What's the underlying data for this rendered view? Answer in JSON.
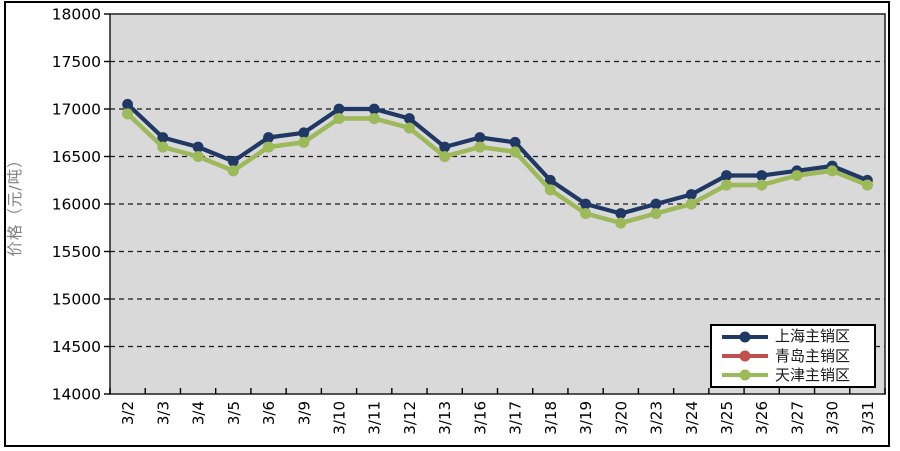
{
  "chart_data": {
    "type": "line",
    "title": "",
    "xlabel": "",
    "ylabel": "价格（元/吨）",
    "ylim": [
      14000,
      18000
    ],
    "ytick_step": 500,
    "grid": "horizontal-dashed",
    "plot_bg": "#D9D9D9",
    "legend_position": "inside-bottom-right",
    "categories": [
      "3/2",
      "3/3",
      "3/4",
      "3/5",
      "3/6",
      "3/9",
      "3/10",
      "3/11",
      "3/12",
      "3/13",
      "3/16",
      "3/17",
      "3/18",
      "3/19",
      "3/20",
      "3/23",
      "3/24",
      "3/25",
      "3/26",
      "3/27",
      "3/30",
      "3/31"
    ],
    "series": [
      {
        "name": "上海主销区",
        "color": "#1F3864",
        "visually_hidden": false,
        "values": [
          17050,
          16700,
          16600,
          16450,
          16700,
          16750,
          17000,
          17000,
          16900,
          16600,
          16700,
          16650,
          16250,
          16000,
          15900,
          16000,
          16100,
          16300,
          16300,
          16350,
          16400,
          16250
        ]
      },
      {
        "name": "青岛主销区",
        "color": "#C0504D",
        "visually_hidden": true,
        "values": [
          16950,
          16600,
          16500,
          16350,
          16600,
          16650,
          16900,
          16900,
          16800,
          16500,
          16600,
          16550,
          16150,
          15900,
          15800,
          15900,
          16000,
          16200,
          16200,
          16300,
          16350,
          16200
        ]
      },
      {
        "name": "天津主销区",
        "color": "#9BBB59",
        "visually_hidden": false,
        "values": [
          16950,
          16600,
          16500,
          16350,
          16600,
          16650,
          16900,
          16900,
          16800,
          16500,
          16600,
          16550,
          16150,
          15900,
          15800,
          15900,
          16000,
          16200,
          16200,
          16300,
          16350,
          16200
        ]
      }
    ]
  }
}
